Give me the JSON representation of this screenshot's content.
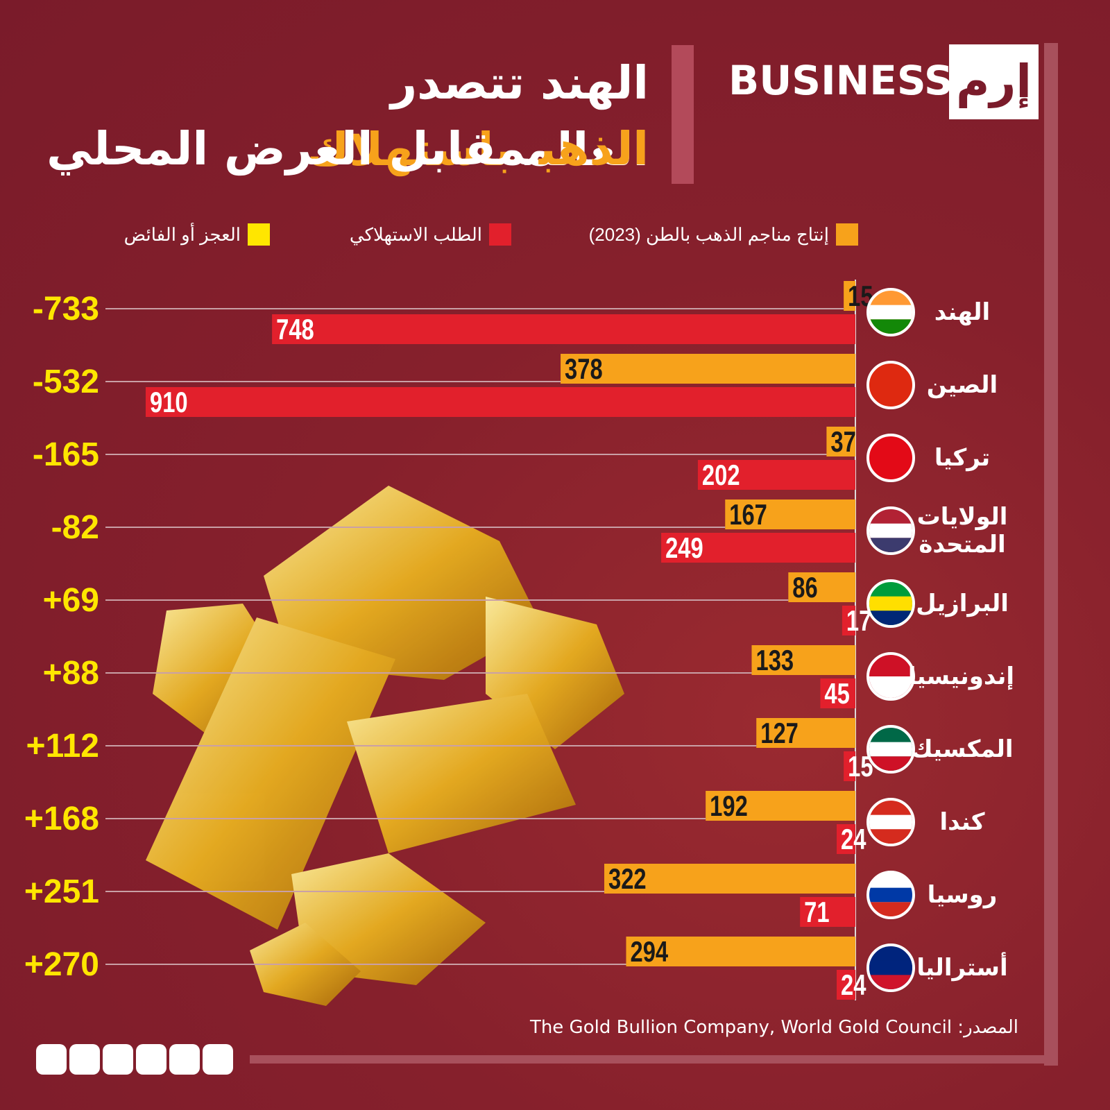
{
  "header": {
    "brand": "BUSINESS",
    "logo": "إرم"
  },
  "chart_data": {
    "type": "bar",
    "title_lines": [
      [
        {
          "text": "الهند تتصدر العالم",
          "color": "#ffffff"
        },
        {
          "text": "باستهلاك",
          "color": "#f7a21b"
        }
      ],
      [
        {
          "text": "الذهب",
          "color": "#f7a21b"
        },
        {
          "text": "مقابل العرض المحلي",
          "color": "#ffffff"
        }
      ]
    ],
    "categories": [
      "الهند",
      "الصين",
      "تركيا",
      "الولايات\nالمتحدة",
      "البرازيل",
      "إندونيسيا",
      "المكسيك",
      "كندا",
      "روسيا",
      "أستراليا"
    ],
    "series": [
      {
        "name": "إنتاج مناجم الذهب بالطن (2023)",
        "color": "#f7a21b",
        "values": [
          15,
          378,
          37,
          167,
          86,
          133,
          127,
          192,
          322,
          294
        ]
      },
      {
        "name": "الطلب الاستهلاكي",
        "color": "#e2202c",
        "values": [
          748,
          910,
          202,
          249,
          17,
          45,
          15,
          24,
          71,
          24
        ]
      },
      {
        "name": "العجز أو الفائض",
        "color": "#ffe600",
        "values": [
          -733,
          -532,
          -165,
          -82,
          69,
          88,
          112,
          168,
          251,
          270
        ],
        "value_labels": [
          "-733",
          "-532",
          "-165",
          "-82",
          "+69",
          "+88",
          "+112",
          "+168",
          "+251",
          "+270"
        ]
      }
    ]
  },
  "source": "المصدر: The Gold Bullion Company, World Gold Council"
}
